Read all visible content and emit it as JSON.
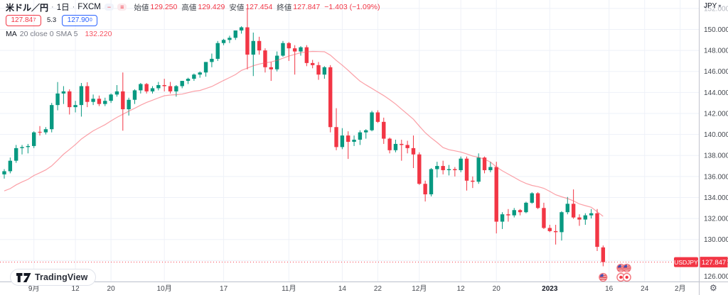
{
  "header": {
    "symbol": "米ドル／円",
    "sep": "·",
    "interval": "1日",
    "exchange": "FXCM",
    "ohlc": {
      "open_label": "始値",
      "open": "129.250",
      "high_label": "高値",
      "high": "129.429",
      "low_label": "安値",
      "low": "127.454",
      "close_label": "終値",
      "close": "127.847",
      "change": "−1.403 (−1.09%)"
    },
    "bid": {
      "main": "127.84",
      "sup": "7"
    },
    "spread": "5.3",
    "ask": {
      "main": "127.90",
      "sup": "0"
    },
    "indicator": {
      "name": "MA",
      "params": "20 close 0 SMA 5",
      "value": "132.220"
    }
  },
  "icons": {
    "minus": "−",
    "menu": "≡",
    "caret_down": "▾",
    "gear": "⚙"
  },
  "price_axis": {
    "currency": "JPY",
    "labels": [
      {
        "p": 152,
        "t": "152.000",
        "faint": true
      },
      {
        "p": 150,
        "t": "150.000"
      },
      {
        "p": 148,
        "t": "148.000"
      },
      {
        "p": 146,
        "t": "146.000"
      },
      {
        "p": 144,
        "t": "144.000"
      },
      {
        "p": 142,
        "t": "142.000"
      },
      {
        "p": 140,
        "t": "140.000"
      },
      {
        "p": 138,
        "t": "138.000"
      },
      {
        "p": 136,
        "t": "136.000"
      },
      {
        "p": 134,
        "t": "134.000"
      },
      {
        "p": 132,
        "t": "132.000"
      },
      {
        "p": 130,
        "t": "130.000"
      },
      {
        "p": 128,
        "t": "128.000"
      },
      {
        "p": 126,
        "t": "126.000"
      }
    ]
  },
  "price_tag": {
    "symbol": "USDJPY",
    "price": "127.847"
  },
  "time_axis": {
    "ticks": [
      {
        "label": "9月",
        "i": 5
      },
      {
        "label": "12",
        "i": 12
      },
      {
        "label": "20",
        "i": 18
      },
      {
        "label": "10月",
        "i": 27
      },
      {
        "label": "17",
        "i": 37
      },
      {
        "label": "11月",
        "i": 48
      },
      {
        "label": "14",
        "i": 57
      },
      {
        "label": "22",
        "i": 63
      },
      {
        "label": "12月",
        "i": 70
      },
      {
        "label": "12",
        "i": 77
      },
      {
        "label": "20",
        "i": 83
      },
      {
        "label": "2023",
        "i": 92,
        "bold": true
      },
      {
        "label": "16",
        "i": 102
      },
      {
        "label": "24",
        "i": 108
      },
      {
        "label": "2月",
        "i": 114
      }
    ]
  },
  "watermark": {
    "text": "TradingView"
  },
  "events": [
    {
      "country": "US",
      "row": 0,
      "indices": [
        104,
        105
      ]
    },
    {
      "country": "US",
      "row": 1,
      "indices": [
        101
      ]
    },
    {
      "country": "JP",
      "row": 1,
      "indices": [
        104,
        105
      ]
    }
  ],
  "colors": {
    "up": "#089981",
    "down": "#f23645",
    "ma": "#f7525f",
    "grid": "#eef1f8",
    "axis_line": "#c1c4cd",
    "axis_text": "#44484f",
    "axis_text_bold": "#131722",
    "axis_text_faint": "#b2b5be",
    "tag_bg": "#f23645",
    "tag_text": "#ffffff",
    "event_ring": "#f2767e",
    "flag_blue": "#3f51b5",
    "flag_red": "#e04a53"
  },
  "chart_data": {
    "type": "candlestick",
    "symbol": "USDJPY",
    "interval": "1D",
    "ylim": [
      126,
      152.8
    ],
    "grid_step": 2,
    "last_close": 127.847,
    "ma_period": 20,
    "ma_seed": [
      133.2,
      131.6,
      133.2,
      133.9,
      133.0,
      135.0,
      135.0,
      135.1,
      132.9,
      133.0,
      133.5,
      133.3,
      134.2,
      135.0,
      135.9,
      136.9,
      137.4,
      136.7,
      137.3
    ],
    "candles": [
      [
        136.2,
        136.7,
        135.8,
        136.5
      ],
      [
        136.5,
        137.8,
        136.3,
        137.5
      ],
      [
        137.5,
        139.0,
        137.3,
        138.7
      ],
      [
        138.7,
        139.0,
        138.1,
        138.8
      ],
      [
        138.8,
        139.1,
        138.2,
        138.9
      ],
      [
        138.9,
        140.3,
        138.7,
        140.2
      ],
      [
        140.25,
        140.8,
        139.9,
        140.2
      ],
      [
        140.2,
        140.7,
        140.0,
        140.5
      ],
      [
        140.5,
        143.0,
        140.2,
        142.8
      ],
      [
        142.8,
        144.99,
        142.3,
        143.9
      ],
      [
        143.9,
        144.6,
        142.9,
        144.1
      ],
      [
        144.1,
        144.3,
        141.9,
        142.6
      ],
      [
        142.6,
        143.2,
        142.1,
        142.8
      ],
      [
        142.8,
        144.9,
        141.7,
        144.6
      ],
      [
        144.6,
        144.97,
        142.6,
        143.1
      ],
      [
        143.1,
        143.8,
        142.8,
        143.4
      ],
      [
        143.4,
        143.7,
        142.7,
        142.9
      ],
      [
        142.9,
        143.5,
        142.7,
        143.2
      ],
      [
        143.2,
        143.9,
        143.0,
        143.8
      ],
      [
        143.8,
        144.7,
        143.6,
        144.1
      ],
      [
        144.1,
        145.9,
        140.36,
        142.4
      ],
      [
        142.4,
        143.5,
        141.8,
        143.3
      ],
      [
        143.3,
        144.3,
        142.9,
        144.2
      ],
      [
        144.2,
        144.9,
        143.9,
        144.8
      ],
      [
        144.8,
        144.9,
        143.9,
        144.1
      ],
      [
        144.1,
        144.6,
        143.9,
        144.4
      ],
      [
        144.4,
        145.0,
        144.2,
        144.7
      ],
      [
        144.7,
        145.3,
        144.1,
        144.6
      ],
      [
        144.6,
        145.0,
        143.9,
        144.1
      ],
      [
        144.1,
        144.7,
        143.6,
        144.6
      ],
      [
        144.6,
        145.1,
        144.4,
        145.1
      ],
      [
        145.1,
        145.4,
        144.8,
        145.3
      ],
      [
        145.3,
        145.8,
        145.1,
        145.7
      ],
      [
        145.7,
        146.0,
        145.4,
        145.9
      ],
      [
        145.9,
        146.9,
        145.5,
        146.9
      ],
      [
        146.9,
        147.7,
        146.4,
        147.2
      ],
      [
        147.2,
        148.9,
        147.0,
        148.7
      ],
      [
        148.7,
        149.1,
        148.5,
        149.0
      ],
      [
        149.0,
        149.4,
        148.7,
        149.2
      ],
      [
        149.2,
        149.9,
        149.0,
        149.9
      ],
      [
        149.9,
        150.3,
        149.6,
        150.2
      ],
      [
        150.2,
        151.94,
        146.2,
        147.6
      ],
      [
        147.6,
        149.7,
        145.56,
        148.9
      ],
      [
        148.9,
        149.3,
        147.6,
        148.0
      ],
      [
        148.0,
        148.2,
        145.9,
        146.4
      ],
      [
        146.4,
        146.9,
        145.1,
        146.2
      ],
      [
        146.2,
        147.9,
        146.0,
        147.5
      ],
      [
        147.5,
        148.9,
        147.4,
        148.7
      ],
      [
        148.7,
        148.8,
        147.0,
        148.2
      ],
      [
        148.2,
        148.5,
        145.7,
        147.9
      ],
      [
        147.9,
        148.4,
        147.5,
        148.3
      ],
      [
        148.3,
        148.5,
        146.5,
        146.8
      ],
      [
        146.8,
        147.1,
        146.3,
        146.6
      ],
      [
        146.6,
        146.9,
        145.2,
        145.7
      ],
      [
        145.7,
        146.5,
        145.3,
        146.4
      ],
      [
        146.4,
        146.6,
        140.2,
        140.7
      ],
      [
        140.7,
        142.5,
        138.5,
        138.8
      ],
      [
        138.8,
        140.6,
        138.6,
        139.9
      ],
      [
        139.9,
        140.3,
        137.67,
        139.3
      ],
      [
        139.3,
        139.9,
        138.9,
        139.5
      ],
      [
        139.5,
        140.4,
        139.0,
        140.2
      ],
      [
        140.2,
        140.5,
        139.6,
        140.4
      ],
      [
        140.4,
        142.25,
        140.3,
        142.1
      ],
      [
        142.1,
        142.3,
        141.1,
        141.2
      ],
      [
        141.2,
        141.6,
        139.1,
        139.6
      ],
      [
        139.6,
        139.7,
        138.2,
        138.5
      ],
      [
        138.5,
        139.5,
        138.3,
        139.1
      ],
      [
        139.1,
        139.5,
        137.5,
        139.0
      ],
      [
        139.0,
        139.4,
        138.2,
        138.7
      ],
      [
        138.7,
        139.9,
        136.8,
        138.1
      ],
      [
        138.1,
        138.3,
        135.2,
        135.3
      ],
      [
        135.3,
        135.6,
        133.62,
        134.3
      ],
      [
        134.3,
        136.8,
        134.1,
        136.7
      ],
      [
        136.7,
        137.4,
        135.9,
        137.0
      ],
      [
        137.0,
        137.5,
        136.2,
        136.6
      ],
      [
        136.6,
        137.1,
        136.1,
        136.7
      ],
      [
        136.7,
        136.9,
        136.0,
        136.6
      ],
      [
        136.6,
        137.9,
        136.4,
        137.7
      ],
      [
        137.7,
        137.9,
        134.66,
        135.6
      ],
      [
        135.6,
        136.0,
        134.9,
        135.5
      ],
      [
        135.5,
        138.2,
        135.3,
        137.8
      ],
      [
        137.8,
        137.9,
        136.3,
        136.6
      ],
      [
        136.6,
        137.4,
        136.4,
        136.9
      ],
      [
        136.9,
        137.4,
        130.58,
        131.7
      ],
      [
        131.7,
        132.6,
        131.0,
        132.4
      ],
      [
        132.4,
        132.9,
        131.7,
        132.3
      ],
      [
        132.3,
        133.0,
        132.1,
        132.8
      ],
      [
        132.8,
        132.9,
        132.3,
        132.6
      ],
      [
        132.6,
        133.6,
        132.5,
        133.5
      ],
      [
        133.5,
        134.5,
        133.4,
        134.4
      ],
      [
        134.4,
        134.5,
        132.9,
        133.0
      ],
      [
        133.0,
        133.5,
        131.0,
        131.1
      ],
      [
        131.1,
        131.4,
        130.7,
        130.8
      ],
      [
        130.8,
        131.4,
        129.52,
        130.7
      ],
      [
        130.7,
        132.7,
        129.9,
        132.6
      ],
      [
        132.6,
        134.05,
        132.4,
        133.4
      ],
      [
        133.4,
        134.77,
        131.97,
        132.1
      ],
      [
        132.1,
        132.4,
        131.3,
        131.9
      ],
      [
        131.9,
        132.5,
        131.4,
        132.3
      ],
      [
        132.3,
        132.9,
        132.0,
        132.5
      ],
      [
        132.5,
        132.9,
        128.9,
        129.3
      ],
      [
        129.25,
        129.429,
        127.454,
        127.847
      ]
    ]
  }
}
